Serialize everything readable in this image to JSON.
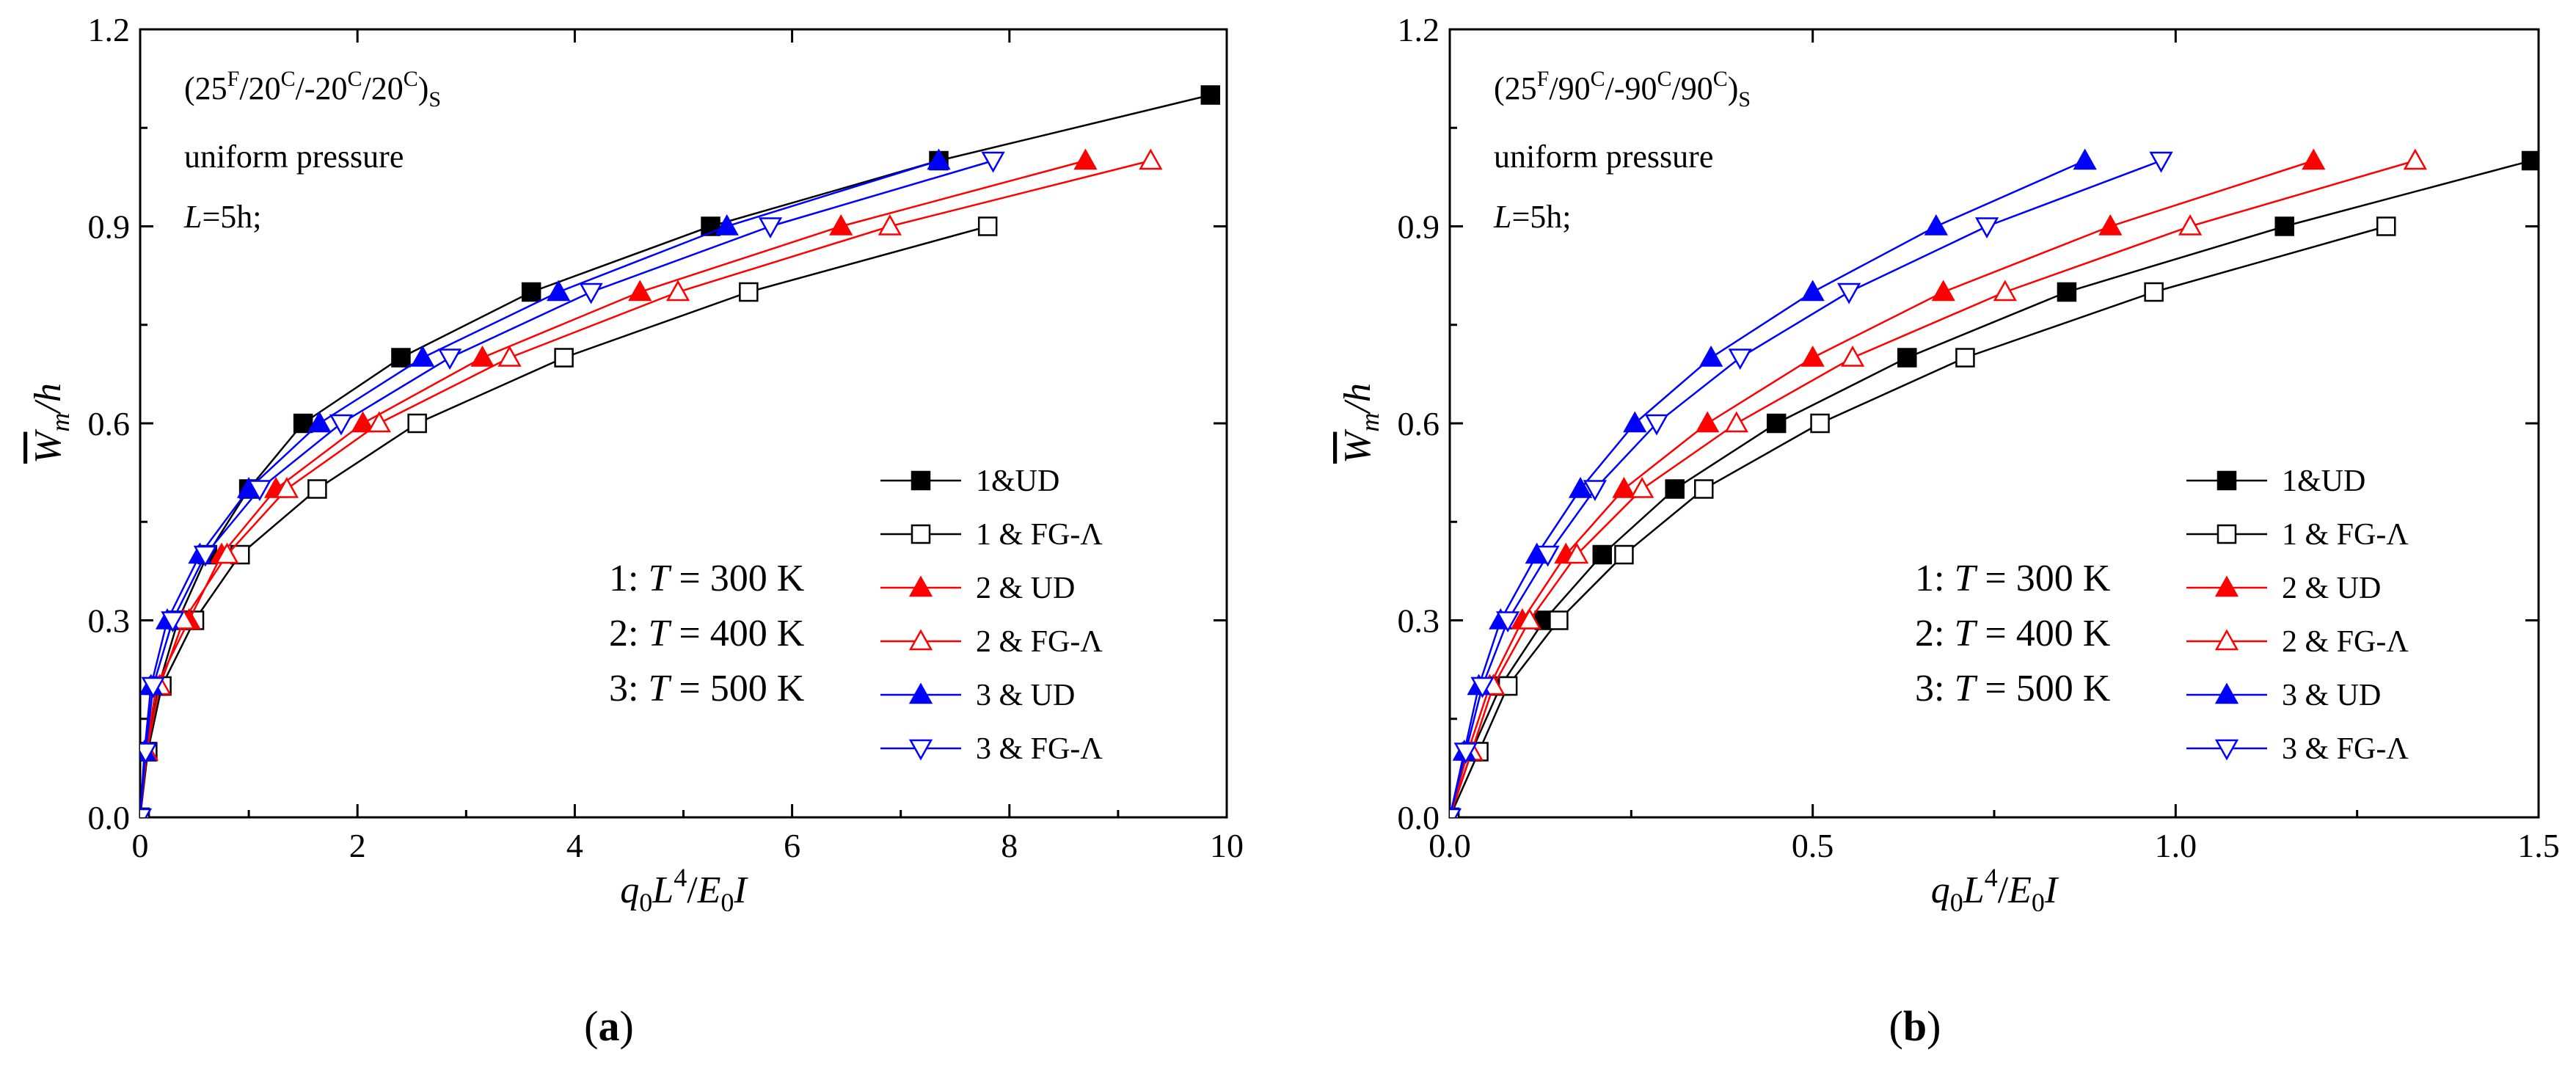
{
  "colors": {
    "black": "#000000",
    "red": "#ff0000",
    "blue": "#0000ff"
  },
  "chart_data": [
    {
      "type": "line",
      "panel_label": "a",
      "annotation": {
        "layup": {
          "base": "(25",
          "sup1": "F",
          "mid1": "/20",
          "sup2": "C",
          "mid2": "/-20",
          "sup3": "C",
          "mid3": "/20",
          "sup4": "C",
          "close": ")",
          "sub": "S"
        },
        "load": "uniform pressure",
        "length": {
          "var": "L",
          "rest": "=5h;"
        }
      },
      "temperatures": [
        {
          "prefix": "1: ",
          "var": "T",
          "rest": " = 300 K"
        },
        {
          "prefix": "2: ",
          "var": "T",
          "rest": " = 400 K"
        },
        {
          "prefix": "3: ",
          "var": "T",
          "rest": " = 500 K"
        }
      ],
      "xlabel": {
        "q": "q",
        "qsub": "0",
        "L": "L",
        "Lsup": "4",
        "slash": "/",
        "E": "E",
        "Esub": "0",
        "I": "I"
      },
      "ylabel": {
        "W": "W",
        "Wsub": "m",
        "rest": "/h"
      },
      "xlim": [
        0,
        10
      ],
      "ylim": [
        0,
        1.2
      ],
      "xticks": [
        "0",
        "2",
        "4",
        "6",
        "8",
        "10"
      ],
      "yticks": [
        "0.0",
        "0.3",
        "0.6",
        "0.9",
        "1.2"
      ],
      "series": [
        {
          "name": "1&UD",
          "color": "#000000",
          "marker": "square-filled",
          "x": [
            0,
            0.06,
            0.17,
            0.35,
            0.62,
            1.0,
            1.5,
            2.4,
            3.6,
            5.25,
            7.35,
            9.85
          ],
          "y": [
            0,
            0.1,
            0.2,
            0.3,
            0.4,
            0.5,
            0.6,
            0.7,
            0.8,
            0.9,
            1.0,
            1.1
          ]
        },
        {
          "name": "1 & FG-Λ",
          "color": "#000000",
          "marker": "square-open",
          "x": [
            0,
            0.07,
            0.2,
            0.5,
            0.92,
            1.63,
            2.55,
            3.9,
            5.6,
            7.8
          ],
          "y": [
            0,
            0.1,
            0.2,
            0.3,
            0.4,
            0.5,
            0.6,
            0.7,
            0.8,
            0.9
          ]
        },
        {
          "name": "2 & UD",
          "color": "#ff0000",
          "marker": "triangle-up-filled",
          "x": [
            0,
            0.05,
            0.15,
            0.45,
            0.75,
            1.25,
            2.05,
            3.15,
            4.6,
            6.45,
            8.7
          ],
          "y": [
            0,
            0.1,
            0.2,
            0.3,
            0.4,
            0.5,
            0.6,
            0.7,
            0.8,
            0.9,
            1.0
          ]
        },
        {
          "name": "2 & FG-Λ",
          "color": "#ff0000",
          "marker": "triangle-up-open",
          "x": [
            0,
            0.06,
            0.18,
            0.4,
            0.8,
            1.35,
            2.2,
            3.4,
            4.95,
            6.9,
            9.3
          ],
          "y": [
            0,
            0.1,
            0.2,
            0.3,
            0.4,
            0.5,
            0.6,
            0.7,
            0.8,
            0.9,
            1.0
          ]
        },
        {
          "name": "3 & UD",
          "color": "#0000ff",
          "marker": "triangle-up-filled",
          "x": [
            0,
            0.04,
            0.1,
            0.25,
            0.55,
            1.0,
            1.65,
            2.6,
            3.85,
            5.4,
            7.35
          ],
          "y": [
            0,
            0.1,
            0.2,
            0.3,
            0.4,
            0.5,
            0.6,
            0.7,
            0.8,
            0.9,
            1.0
          ]
        },
        {
          "name": "3 & FG-Λ",
          "color": "#0000ff",
          "marker": "triangle-down-open",
          "x": [
            0,
            0.05,
            0.12,
            0.3,
            0.6,
            1.1,
            1.85,
            2.85,
            4.15,
            5.8,
            7.85
          ],
          "y": [
            0,
            0.1,
            0.2,
            0.3,
            0.4,
            0.5,
            0.6,
            0.7,
            0.8,
            0.9,
            1.0
          ]
        }
      ]
    },
    {
      "type": "line",
      "panel_label": "b",
      "annotation": {
        "layup": {
          "base": "(25",
          "sup1": "F",
          "mid1": "/90",
          "sup2": "C",
          "mid2": "/-90",
          "sup3": "C",
          "mid3": "/90",
          "sup4": "C",
          "close": ")",
          "sub": "S"
        },
        "load": "uniform pressure",
        "length": {
          "var": "L",
          "rest": "=5h;"
        }
      },
      "temperatures": [
        {
          "prefix": "1: ",
          "var": "T",
          "rest": " = 300 K"
        },
        {
          "prefix": "2: ",
          "var": "T",
          "rest": " = 400 K"
        },
        {
          "prefix": "3: ",
          "var": "T",
          "rest": " = 500 K"
        }
      ],
      "xlabel": {
        "q": "q",
        "qsub": "0",
        "L": "L",
        "Lsup": "4",
        "slash": "/",
        "E": "E",
        "Esub": "0",
        "I": "I"
      },
      "ylabel": {
        "W": "W",
        "Wsub": "m",
        "rest": "/h"
      },
      "xlim": [
        0,
        1.5
      ],
      "ylim": [
        0,
        1.2
      ],
      "xticks": [
        "0.0",
        "0.5",
        "1.0",
        "1.5"
      ],
      "yticks": [
        "0.0",
        "0.3",
        "0.6",
        "0.9",
        "1.2"
      ],
      "series": [
        {
          "name": "1&UD",
          "color": "#000000",
          "marker": "square-filled",
          "x": [
            0,
            0.03,
            0.07,
            0.13,
            0.21,
            0.31,
            0.45,
            0.63,
            0.85,
            1.15,
            1.49
          ],
          "y": [
            0,
            0.1,
            0.2,
            0.3,
            0.4,
            0.5,
            0.6,
            0.7,
            0.8,
            0.9,
            1.0
          ]
        },
        {
          "name": "1 & FG-Λ",
          "color": "#000000",
          "marker": "square-open",
          "x": [
            0,
            0.04,
            0.08,
            0.15,
            0.24,
            0.35,
            0.51,
            0.71,
            0.97,
            1.29
          ],
          "y": [
            0,
            0.1,
            0.2,
            0.3,
            0.4,
            0.5,
            0.6,
            0.7,
            0.8,
            0.9
          ]
        },
        {
          "name": "2 & UD",
          "color": "#ff0000",
          "marker": "triangle-up-filled",
          "x": [
            0,
            0.025,
            0.055,
            0.1,
            0.16,
            0.24,
            0.355,
            0.5,
            0.68,
            0.91,
            1.19
          ],
          "y": [
            0,
            0.1,
            0.2,
            0.3,
            0.4,
            0.5,
            0.6,
            0.7,
            0.8,
            0.9,
            1.0
          ]
        },
        {
          "name": "2 & FG-Λ",
          "color": "#ff0000",
          "marker": "triangle-up-open",
          "x": [
            0,
            0.03,
            0.06,
            0.11,
            0.175,
            0.265,
            0.395,
            0.555,
            0.765,
            1.02,
            1.33
          ],
          "y": [
            0,
            0.1,
            0.2,
            0.3,
            0.4,
            0.5,
            0.6,
            0.7,
            0.8,
            0.9,
            1.0
          ]
        },
        {
          "name": "3 & UD",
          "color": "#0000ff",
          "marker": "triangle-up-filled",
          "x": [
            0,
            0.02,
            0.04,
            0.07,
            0.12,
            0.18,
            0.255,
            0.36,
            0.5,
            0.67,
            0.875
          ],
          "y": [
            0,
            0.1,
            0.2,
            0.3,
            0.4,
            0.5,
            0.6,
            0.7,
            0.8,
            0.9,
            1.0
          ]
        },
        {
          "name": "3 & FG-Λ",
          "color": "#0000ff",
          "marker": "triangle-down-open",
          "x": [
            0,
            0.022,
            0.045,
            0.08,
            0.135,
            0.2,
            0.285,
            0.4,
            0.55,
            0.74,
            0.98
          ],
          "y": [
            0,
            0.1,
            0.2,
            0.3,
            0.4,
            0.5,
            0.6,
            0.7,
            0.8,
            0.9,
            1.0
          ]
        }
      ]
    }
  ]
}
